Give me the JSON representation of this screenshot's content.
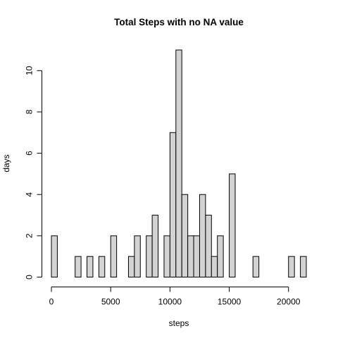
{
  "chart_data": {
    "type": "bar",
    "title": "Total Steps with no NA value",
    "xlabel": "steps",
    "ylabel": "days",
    "bin_width": 500,
    "bin_starts": [
      0,
      500,
      1000,
      1500,
      2000,
      2500,
      3000,
      3500,
      4000,
      4500,
      5000,
      5500,
      6000,
      6500,
      7000,
      7500,
      8000,
      8500,
      9000,
      9500,
      10000,
      10500,
      11000,
      11500,
      12000,
      12500,
      13000,
      13500,
      14000,
      14500,
      15000,
      15500,
      16000,
      16500,
      17000,
      17500,
      18000,
      18500,
      19000,
      19500,
      20000,
      20500,
      21000
    ],
    "values": [
      2,
      0,
      0,
      0,
      1,
      0,
      1,
      0,
      1,
      0,
      2,
      0,
      0,
      1,
      2,
      0,
      2,
      3,
      0,
      2,
      7,
      11,
      4,
      2,
      2,
      4,
      3,
      1,
      2,
      0,
      5,
      0,
      0,
      0,
      1,
      0,
      0,
      0,
      0,
      0,
      1,
      0,
      1
    ],
    "xlim": [
      0,
      21500
    ],
    "ylim": [
      0,
      11
    ],
    "x_ticks": [
      0,
      5000,
      10000,
      15000,
      20000
    ],
    "y_ticks": [
      0,
      2,
      4,
      6,
      8,
      10
    ],
    "bar_color": "#d3d3d3",
    "grid": false,
    "legend": "none"
  }
}
